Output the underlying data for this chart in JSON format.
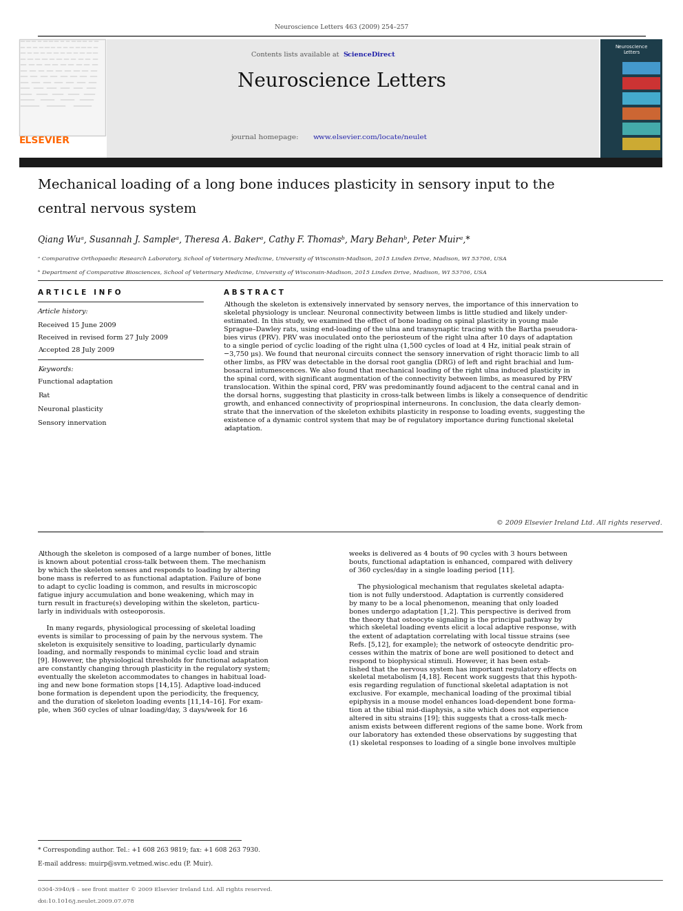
{
  "page_width": 9.92,
  "page_height": 13.23,
  "dpi": 100,
  "bg_color": "#ffffff",
  "header_ref": "Neuroscience Letters 463 (2009) 254–257",
  "journal_name": "Neuroscience Letters",
  "contents_text": "Contents lists available at ",
  "sciencedirect_text": "ScienceDirect",
  "sciencedirect_color": "#2222aa",
  "homepage_label": "journal homepage: ",
  "homepage_url": "www.elsevier.com/locate/neulet",
  "url_color": "#2222aa",
  "elsevier_color": "#FF6600",
  "header_bg": "#e8e8e8",
  "dark_bar_color": "#1a1a1a",
  "article_title_line1": "Mechanical loading of a long bone induces plasticity in sensory input to the",
  "article_title_line2": "central nervous system",
  "authors": "Qiang Wuᵃ, Susannah J. Sampleᵃ, Theresa A. Bakerᵃ, Cathy F. Thomasᵇ, Mary Behanᵇ, Peter Muirᵃ,*",
  "affil_a": "ᵃ Comparative Orthopaedic Research Laboratory, School of Veterinary Medicine, University of Wisconsin-Madison, 2015 Linden Drive, Madison, WI 53706, USA",
  "affil_b": "ᵇ Department of Comparative Biosciences, School of Veterinary Medicine, University of Wisconsin-Madison, 2015 Linden Drive, Madison, WI 53706, USA",
  "art_info_header": "A R T I C L E   I N F O",
  "abstract_header": "A B S T R A C T",
  "history_label": "Article history:",
  "received1": "Received 15 June 2009",
  "received2": "Received in revised form 27 July 2009",
  "accepted": "Accepted 28 July 2009",
  "keywords_label": "Keywords:",
  "keywords": [
    "Functional adaptation",
    "Rat",
    "Neuronal plasticity",
    "Sensory innervation"
  ],
  "abstract": "Although the skeleton is extensively innervated by sensory nerves, the importance of this innervation to\nskeletal physiology is unclear. Neuronal connectivity between limbs is little studied and likely under-\nestimated. In this study, we examined the effect of bone loading on spinal plasticity in young male\nSprague–Dawley rats, using end-loading of the ulna and transynaptic tracing with the Bartha pseudora-\nbies virus (PRV). PRV was inoculated onto the periosteum of the right ulna after 10 days of adaptation\nto a single period of cyclic loading of the right ulna (1,500 cycles of load at 4 Hz, initial peak strain of\n−3,750 μs). We found that neuronal circuits connect the sensory innervation of right thoracic limb to all\nother limbs, as PRV was detectable in the dorsal root ganglia (DRG) of left and right brachial and lum-\nbosacral intumescences. We also found that mechanical loading of the right ulna induced plasticity in\nthe spinal cord, with significant augmentation of the connectivity between limbs, as measured by PRV\ntranslocation. Within the spinal cord, PRV was predominantly found adjacent to the central canal and in\nthe dorsal horns, suggesting that plasticity in cross-talk between limbs is likely a consequence of dendritic\ngrowth, and enhanced connectivity of propriospinal interneurons. In conclusion, the data clearly demon-\nstrate that the innervation of the skeleton exhibits plasticity in response to loading events, suggesting the\nexistence of a dynamic control system that may be of regulatory importance during functional skeletal\nadaptation.",
  "copyright": "© 2009 Elsevier Ireland Ltd. All rights reserved.",
  "body_col1_para1": "Although the skeleton is composed of a large number of bones, little\nis known about potential cross-talk between them. The mechanism\nby which the skeleton senses and responds to loading by altering\nbone mass is referred to as functional adaptation. Failure of bone\nto adapt to cyclic loading is common, and results in microscopic\nfatigue injury accumulation and bone weakening, which may in\nturn result in fracture(s) developing within the skeleton, particu-\nlarly in individuals with osteoporosis.",
  "body_col1_para2": "    In many regards, physiological processing of skeletal loading\nevents is similar to processing of pain by the nervous system. The\nskeleton is exquisitely sensitive to loading, particularly dynamic\nloading, and normally responds to minimal cyclic load and strain\n[9]. However, the physiological thresholds for functional adaptation\nare constantly changing through plasticity in the regulatory system;\neventually the skeleton accommodates to changes in habitual load-\ning and new bone formation stops [14,15]. Adaptive load-induced\nbone formation is dependent upon the periodicity, the frequency,\nand the duration of skeleton loading events [11,14–16]. For exam-\nple, when 360 cycles of ulnar loading/day, 3 days/week for 16",
  "body_col2_para1": "weeks is delivered as 4 bouts of 90 cycles with 3 hours between\nbouts, functional adaptation is enhanced, compared with delivery\nof 360 cycles/day in a single loading period [11].",
  "body_col2_para2": "    The physiological mechanism that regulates skeletal adapta-\ntion is not fully understood. Adaptation is currently considered\nby many to be a local phenomenon, meaning that only loaded\nbones undergo adaptation [1,2]. This perspective is derived from\nthe theory that osteocyte signaling is the principal pathway by\nwhich skeletal loading events elicit a local adaptive response, with\nthe extent of adaptation correlating with local tissue strains (see\nRefs. [5,12], for example); the network of osteocyte dendritic pro-\ncesses within the matrix of bone are well positioned to detect and\nrespond to biophysical stimuli. However, it has been estab-\nlished that the nervous system has important regulatory effects on\nskeletal metabolism [4,18]. Recent work suggests that this hypoth-\nesis regarding regulation of functional skeletal adaptation is not\nexclusive. For example, mechanical loading of the proximal tibial\nepiphysis in a mouse model enhances load-dependent bone forma-\ntion at the tibial mid-diaphysis, a site which does not experience\naltered in situ strains [19]; this suggests that a cross-talk mech-\nanism exists between different regions of the same bone. Work from\nour laboratory has extended these observations by suggesting that\n(1) skeletal responses to loading of a single bone involves multiple",
  "footnote1": "* Corresponding author. Tel.: +1 608 263 9819; fax: +1 608 263 7930.",
  "footnote2": "E-mail address: muirp@svm.vetmed.wisc.edu (P. Muir).",
  "footer1": "0304-3940/$ – see front matter © 2009 Elsevier Ireland Ltd. All rights reserved.",
  "footer2": "doi:10.1016/j.neulet.2009.07.078"
}
